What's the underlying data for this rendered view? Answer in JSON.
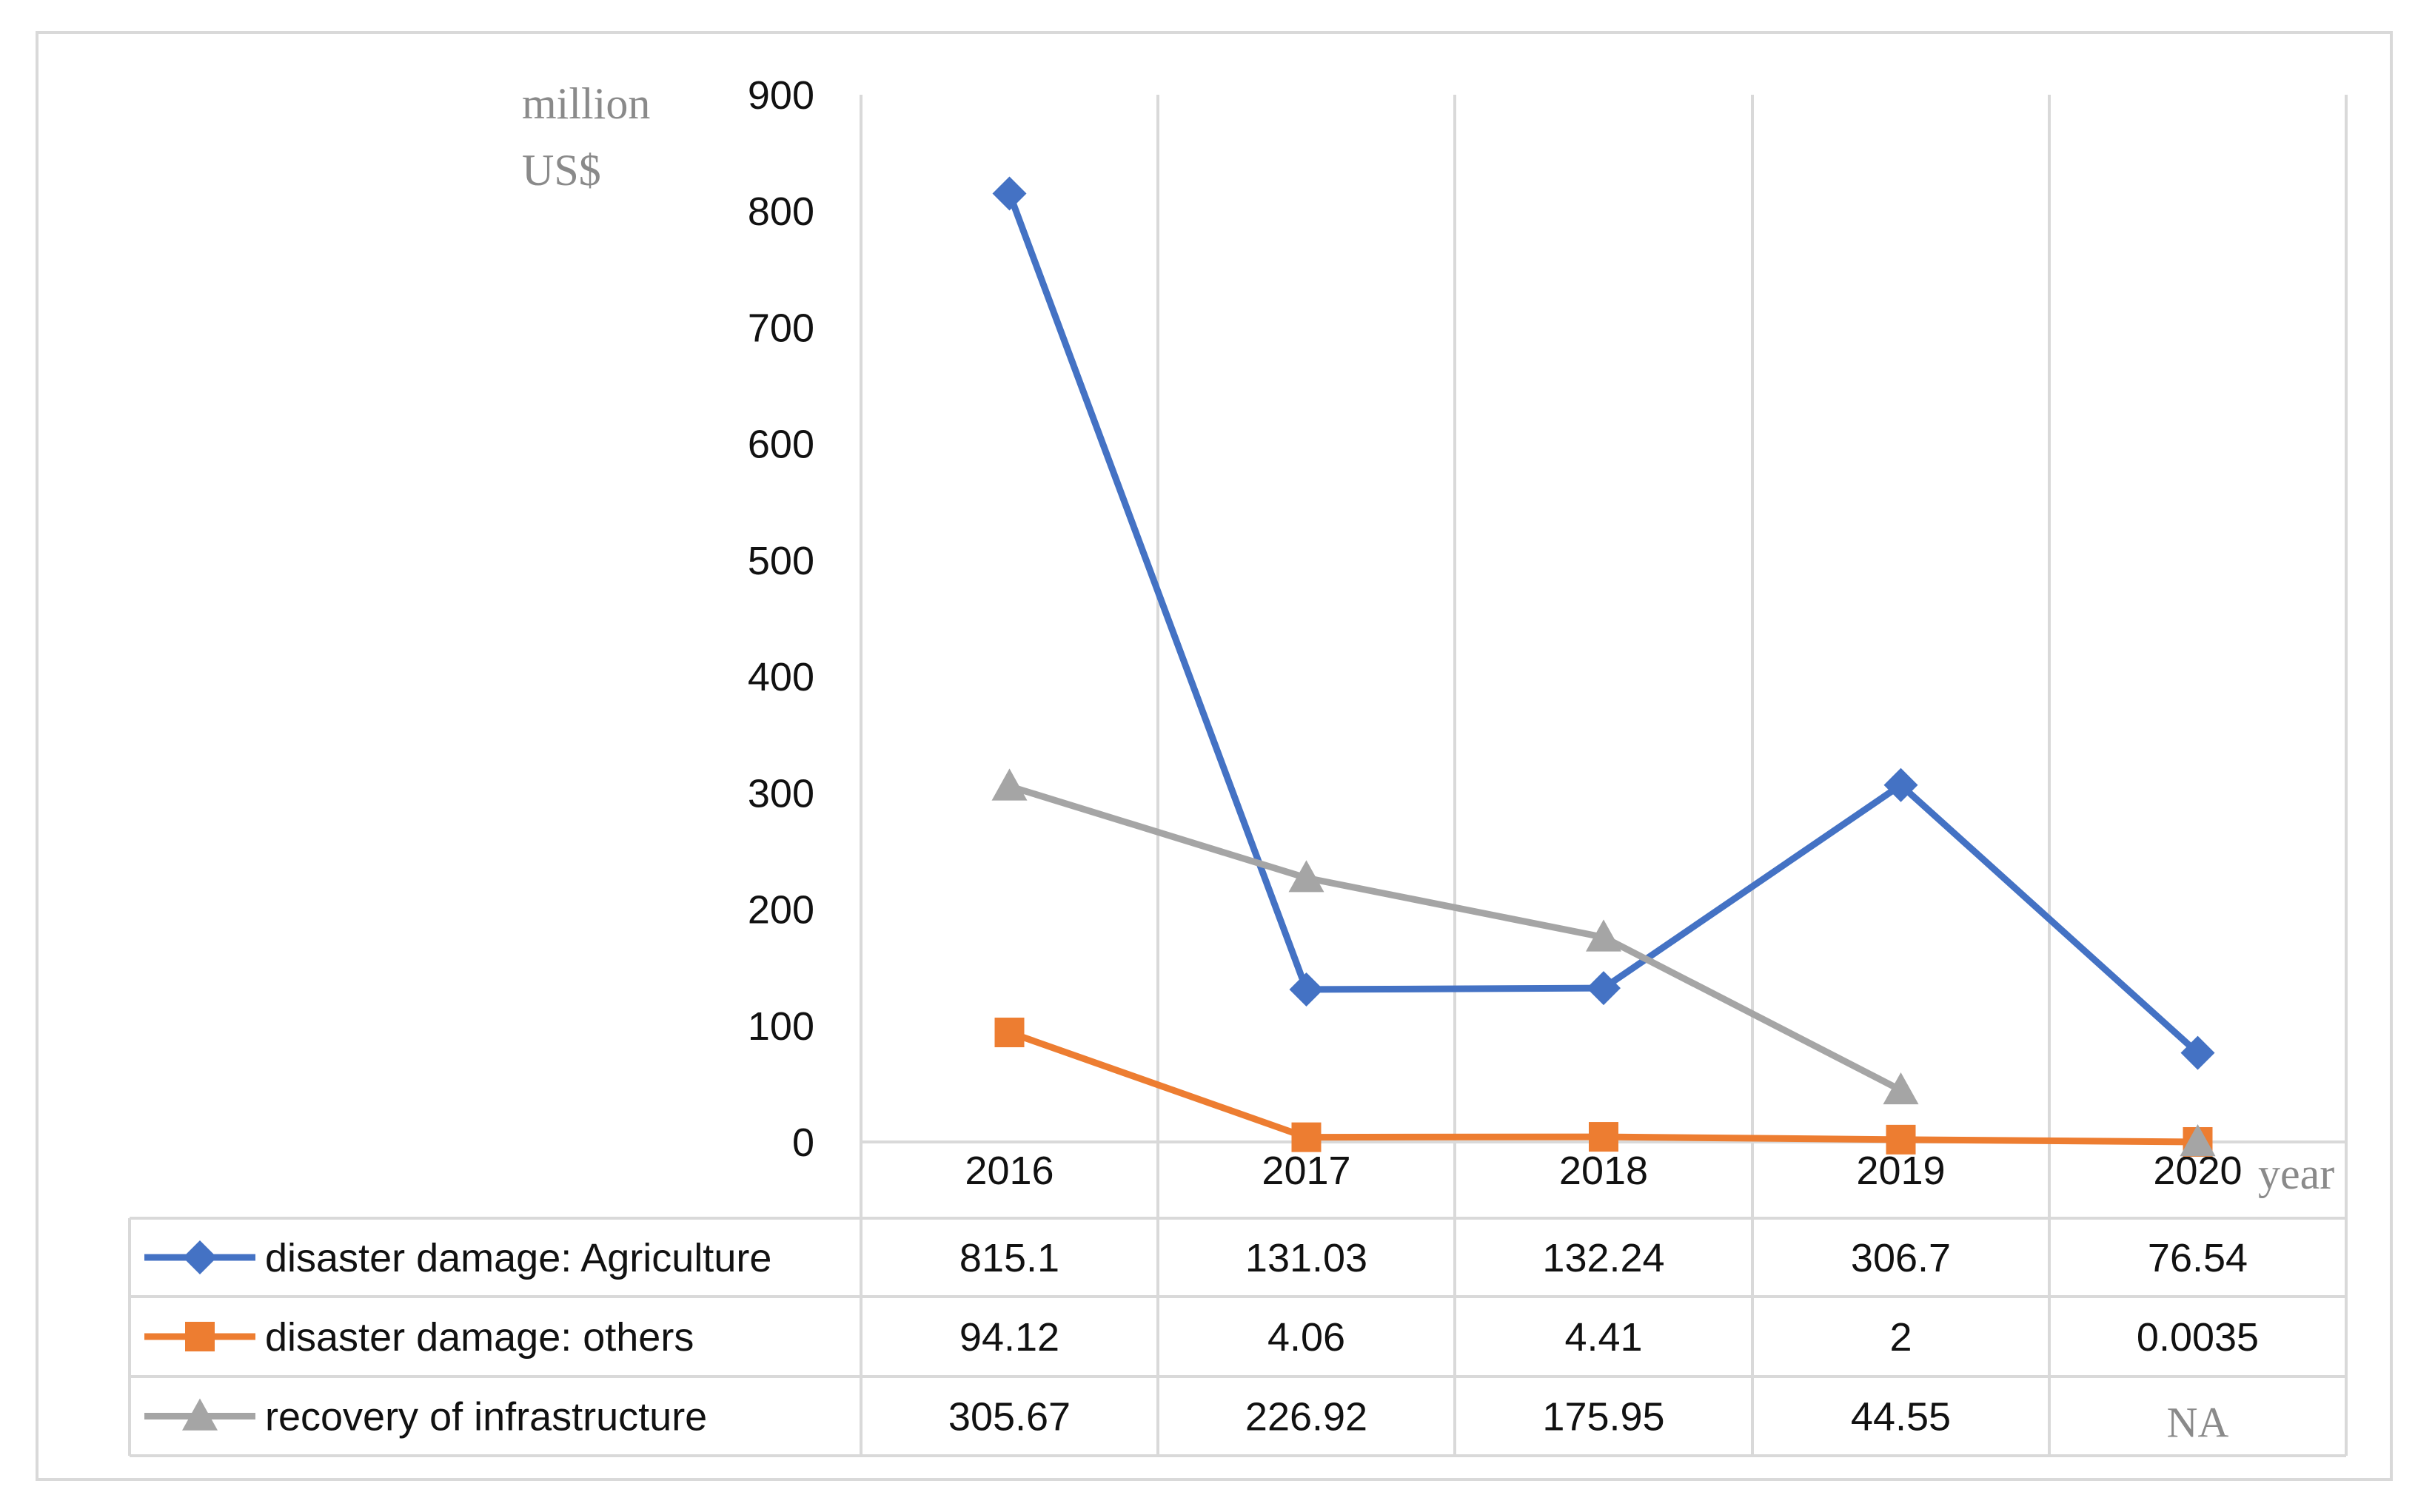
{
  "chart_data": {
    "type": "line",
    "title": "",
    "ylabel": "million US$",
    "ylabel_lines": [
      "million",
      "US$"
    ],
    "xlabel": "year",
    "ylim": [
      0,
      900
    ],
    "yticks": [
      0,
      100,
      200,
      300,
      400,
      500,
      600,
      700,
      800,
      900
    ],
    "yticks_text": [
      "0",
      "100",
      "200",
      "300",
      "400",
      "500",
      "600",
      "700",
      "800",
      "900"
    ],
    "categories": [
      "2016",
      "2017",
      "2018",
      "2019",
      "2020"
    ],
    "grid": "vertical",
    "legend_placement": "data-table",
    "series": [
      {
        "name": "disaster damage: Agriculture",
        "color": "#4472C4",
        "marker": "diamond",
        "values": [
          815.1,
          131.03,
          132.24,
          306.7,
          76.54
        ],
        "table_values": [
          "815.1",
          "131.03",
          "132.24",
          "306.7",
          "76.54"
        ]
      },
      {
        "name": "disaster damage: others",
        "color": "#ED7D31",
        "marker": "square",
        "values": [
          94.12,
          4.06,
          4.41,
          2,
          0.0035
        ],
        "table_values": [
          "94.12",
          "4.06",
          "4.41",
          "2",
          "0.0035"
        ]
      },
      {
        "name": "recovery of infrastructure",
        "color": "#A5A5A5",
        "marker": "triangle",
        "values": [
          305.67,
          226.92,
          175.95,
          44.55,
          null
        ],
        "table_values": [
          "305.67",
          "226.92",
          "175.95",
          "44.55",
          "NA"
        ]
      }
    ]
  }
}
